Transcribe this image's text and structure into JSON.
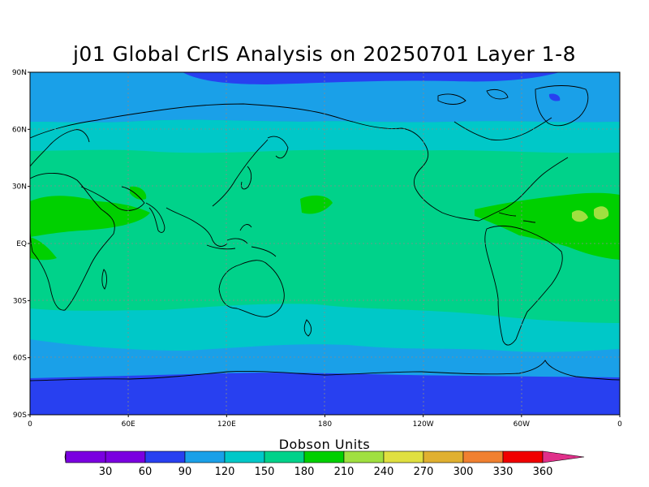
{
  "title": "j01 Global CrIS Analysis on 20250701 Layer 1-8",
  "map": {
    "lat_labels": [
      "90N",
      "60N",
      "30N",
      "EQ",
      "30S",
      "60S",
      "90S"
    ],
    "lon_labels": [
      "0",
      "60E",
      "120E",
      "180",
      "120W",
      "60W",
      "0"
    ]
  },
  "colorbar": {
    "title": "Dobson Units",
    "levels": [
      30,
      60,
      90,
      120,
      150,
      180,
      210,
      240,
      270,
      300,
      330,
      360
    ],
    "colors": {
      "lt30": "#c000c0",
      "30": "#7a00e0",
      "60": "#2840f0",
      "90": "#1aa0e8",
      "120": "#00c8c8",
      "150": "#00d28a",
      "180": "#00d000",
      "210": "#a0e040",
      "240": "#e0e040",
      "270": "#e0b030",
      "300": "#f08030",
      "330": "#f00000",
      "gt360": "#e0308a"
    }
  }
}
